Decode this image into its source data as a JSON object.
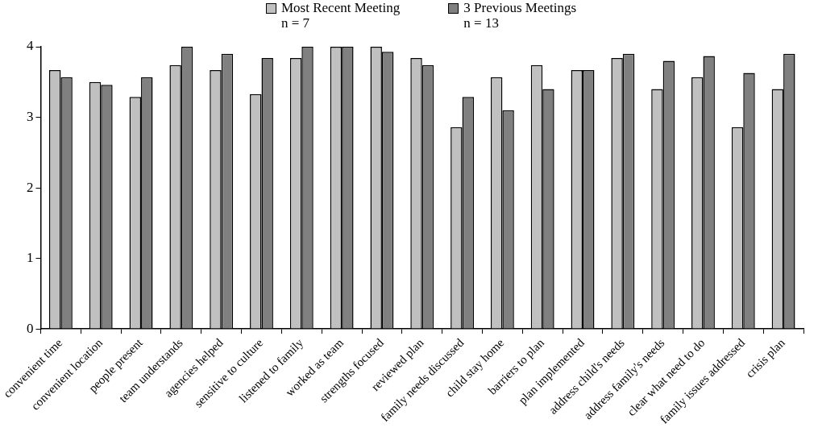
{
  "chart_data": {
    "type": "bar",
    "categories": [
      "convenient time",
      "convenient location",
      "people present",
      "team understands",
      "agencies helped",
      "sensitive to culture",
      "listened to family",
      "worked as team",
      "strengths focused",
      "reviewed plan",
      "family needs discussed",
      "child stay home",
      "barriers to plan",
      "plan implemented",
      "address child's needs",
      "address family's needs",
      "clear what need to do",
      "family issues addressed",
      "crisis plan"
    ],
    "series": [
      {
        "name": "Most Recent Meeting",
        "color": "#c0c0c0",
        "values": [
          3.67,
          3.5,
          3.29,
          3.74,
          3.67,
          3.33,
          3.84,
          4.0,
          4.0,
          3.84,
          2.86,
          3.57,
          3.74,
          3.67,
          3.84,
          3.4,
          3.57,
          2.86,
          3.4
        ]
      },
      {
        "name": "3 Previous Meetings",
        "color": "#808080",
        "values": [
          3.57,
          3.46,
          3.57,
          4.0,
          3.9,
          3.84,
          4.0,
          4.0,
          3.93,
          3.74,
          3.29,
          3.1,
          3.4,
          3.67,
          3.9,
          3.8,
          3.87,
          3.63,
          3.9
        ]
      }
    ],
    "annotations": [
      "n = 7",
      "n = 13"
    ],
    "ylim": [
      0,
      4
    ],
    "yticks": [
      0,
      1,
      2,
      3,
      4
    ],
    "grid": false,
    "legend": "top"
  }
}
